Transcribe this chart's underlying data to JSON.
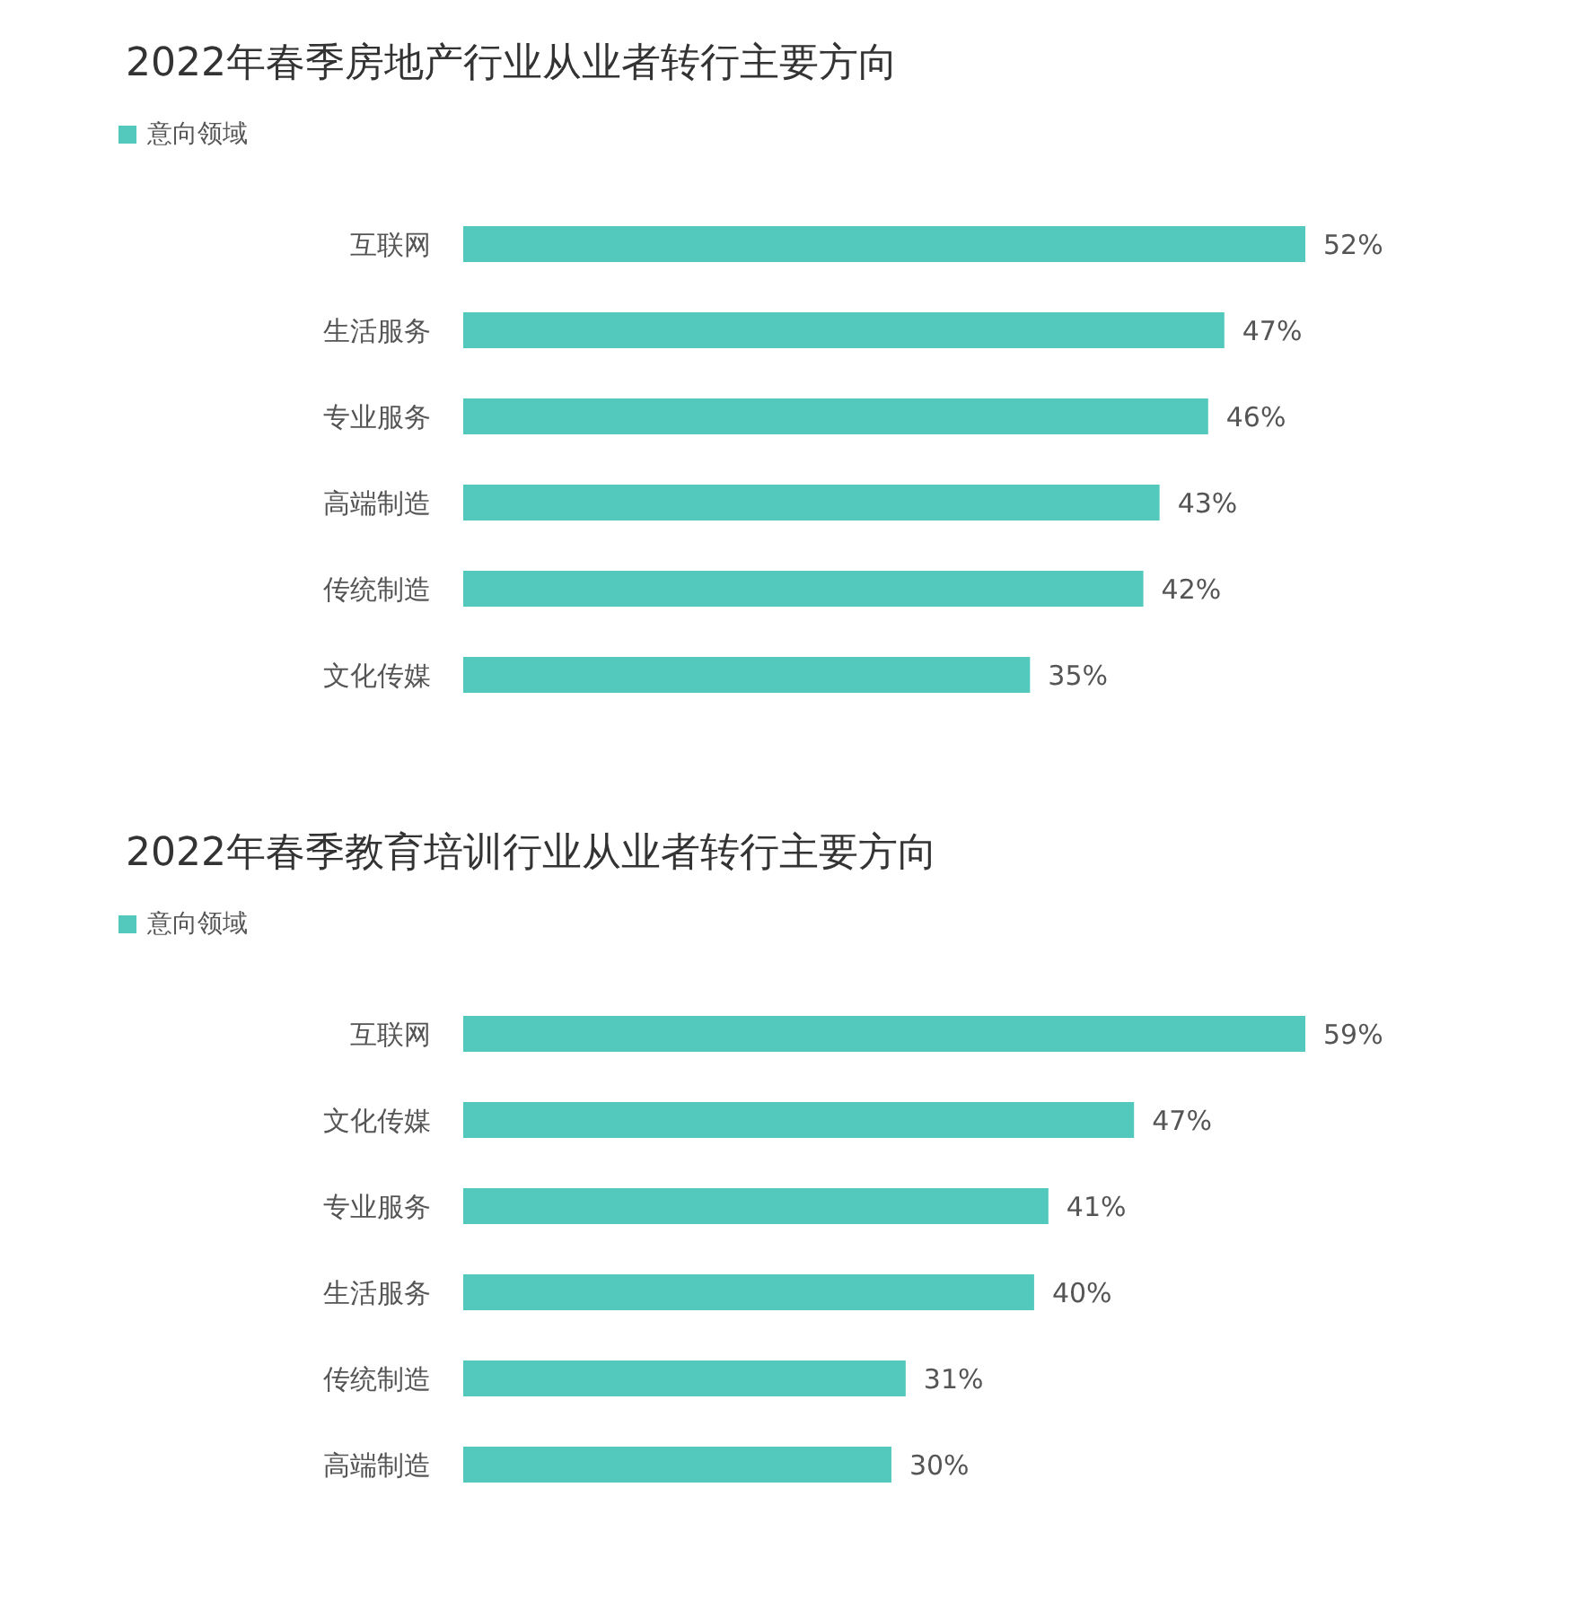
{
  "chart_data": [
    {
      "type": "bar",
      "orientation": "horizontal",
      "title": "2022年春季房地产行业从业者转行主要方向",
      "legend": "top left",
      "categories": [
        "互联网",
        "生活服务",
        "专业服务",
        "高端制造",
        "传统制造",
        "文化传媒"
      ],
      "series": [
        {
          "name": "意向领域",
          "color": "#52c9bc",
          "values": [
            52,
            47,
            46,
            43,
            42,
            35
          ],
          "value_labels": [
            "52%",
            "47%",
            "46%",
            "43%",
            "42%",
            "35%"
          ]
        }
      ]
    },
    {
      "type": "bar",
      "orientation": "horizontal",
      "title": "2022年春季教育培训行业从业者转行主要方向",
      "legend": "top left",
      "categories": [
        "互联网",
        "文化传媒",
        "专业服务",
        "生活服务",
        "传统制造",
        "高端制造"
      ],
      "series": [
        {
          "name": "意向领域",
          "color": "#52c9bc",
          "values": [
            59,
            47,
            41,
            40,
            31,
            30
          ],
          "value_labels": [
            "59%",
            "47%",
            "41%",
            "40%",
            "31%",
            "30%"
          ]
        }
      ]
    }
  ]
}
